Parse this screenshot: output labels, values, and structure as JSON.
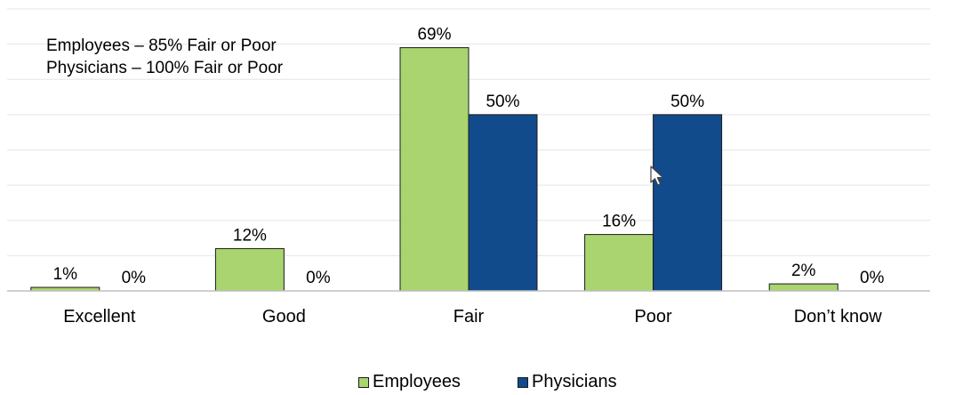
{
  "chart_data": {
    "type": "bar",
    "categories": [
      "Excellent",
      "Good",
      "Fair",
      "Poor",
      "Don’t know"
    ],
    "series": [
      {
        "name": "Employees",
        "values": [
          1,
          12,
          69,
          16,
          2
        ],
        "labels": [
          "1%",
          "12%",
          "69%",
          "16%",
          "2%"
        ],
        "color": "#a9d46f"
      },
      {
        "name": "Physicians",
        "values": [
          0,
          0,
          50,
          50,
          0
        ],
        "labels": [
          "0%",
          "0%",
          "50%",
          "50%",
          "0%"
        ],
        "color": "#114b8c"
      }
    ],
    "ylim": [
      0,
      80
    ],
    "grid": true,
    "legend": "bottom-center",
    "annotations": [
      "Employees – 85% Fair or Poor",
      "Physicians – 100% Fair or Poor"
    ]
  },
  "icons": {
    "cursor": "mouse-pointer-icon"
  }
}
